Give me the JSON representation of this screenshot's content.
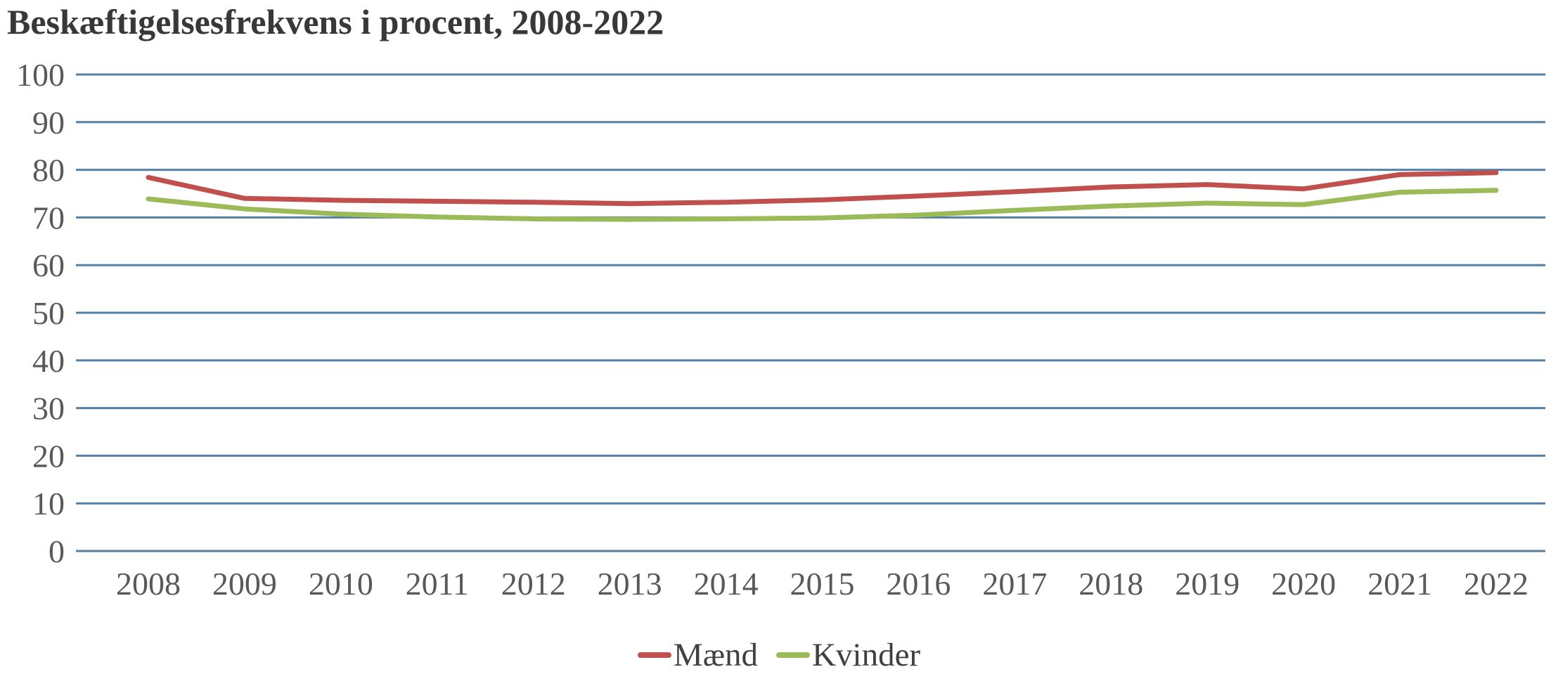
{
  "page": {
    "background_color": "#ffffff"
  },
  "chart_data": {
    "type": "line",
    "title": "Beskæftigelsesfrekvens i procent, 2008-2022",
    "categories": [
      "2008",
      "2009",
      "2010",
      "2011",
      "2012",
      "2013",
      "2014",
      "2015",
      "2016",
      "2017",
      "2018",
      "2019",
      "2020",
      "2021",
      "2022"
    ],
    "series": [
      {
        "name": "Mænd",
        "color": "#C0504D",
        "values": [
          78.4,
          74.0,
          73.6,
          73.4,
          73.2,
          72.9,
          73.2,
          73.7,
          74.5,
          75.4,
          76.4,
          76.9,
          76.0,
          79.0,
          79.4
        ]
      },
      {
        "name": "Kvinder",
        "color": "#9BBB59",
        "values": [
          73.9,
          71.8,
          70.7,
          70.1,
          69.7,
          69.6,
          69.7,
          69.9,
          70.5,
          71.5,
          72.4,
          73.0,
          72.7,
          75.3,
          75.7
        ]
      }
    ],
    "xlabel": "",
    "ylabel": "",
    "y_axis": {
      "min": 0,
      "max": 100,
      "step": 10,
      "tick_labels": [
        "0",
        "10",
        "20",
        "30",
        "40",
        "50",
        "60",
        "70",
        "80",
        "90",
        "100"
      ]
    },
    "grid": {
      "horizontal": true,
      "vertical": false,
      "color": "#5580A5"
    },
    "legend": {
      "position": "bottom",
      "entries": [
        "Mænd",
        "Kvinder"
      ]
    },
    "text_colors": {
      "title": "#383838",
      "ticks": "#595959",
      "legend": "#404040"
    }
  }
}
